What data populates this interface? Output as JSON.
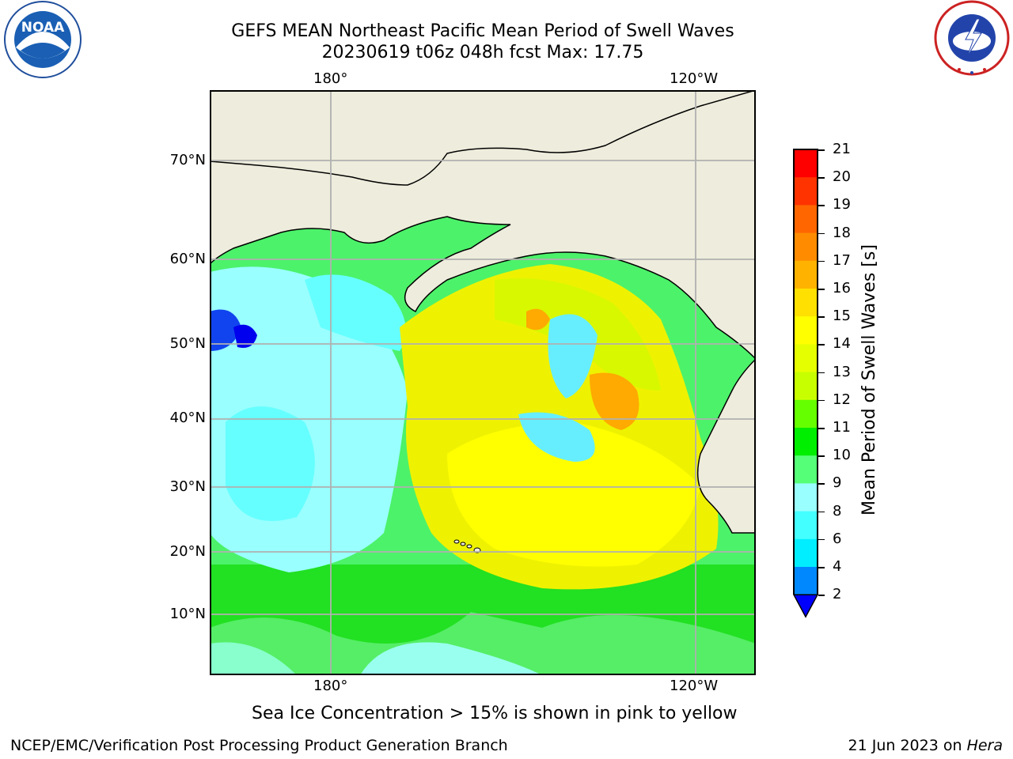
{
  "title": {
    "line1": "GEFS MEAN Northeast Pacific Mean Period of Swell Waves",
    "line2": "20230619 t06z 048h fcst   Max: 17.75"
  },
  "logos": {
    "left": {
      "name": "NOAA",
      "text": "NOAA",
      "ring_text": "NATIONAL OCEANIC AND ATMOSPHERIC ADMINISTRATION · U.S. DEPARTMENT OF COMMERCE"
    },
    "right": {
      "name": "National Weather Service",
      "ring_text": "NATIONAL WEATHER SERVICE"
    }
  },
  "map": {
    "lon_labels_top": [
      "180°",
      "120°W"
    ],
    "lon_labels_bottom": [
      "180°",
      "120°W"
    ],
    "lat_labels": [
      "70°N",
      "60°N",
      "50°N",
      "40°N",
      "30°N",
      "20°N",
      "10°N"
    ],
    "land_color": "#eeecdc",
    "grid_color": "#b0b0b0"
  },
  "colorbar": {
    "label": "Mean Period of Swell Waves [s]",
    "ticks": [
      "21",
      "20",
      "19",
      "18",
      "17",
      "16",
      "15",
      "14",
      "13",
      "12",
      "11",
      "10",
      "9",
      "8",
      "6",
      "4",
      "2"
    ],
    "colors_top_to_bottom": [
      "#ff0000",
      "#ff3300",
      "#ff6600",
      "#ff8c00",
      "#ffb300",
      "#ffe000",
      "#ffff00",
      "#e6ff00",
      "#c8ff00",
      "#66ff00",
      "#00ee00",
      "#55ff77",
      "#99ffff",
      "#44ffff",
      "#00eeff",
      "#0088ff"
    ],
    "under_color": "#0000ff"
  },
  "note": "Sea Ice Concentration > 15% is shown in pink to yellow",
  "footer": {
    "left": "NCEP/EMC/Verification Post Processing Product Generation Branch",
    "right_date": "21 Jun 2023 on ",
    "right_host": "Hera"
  }
}
